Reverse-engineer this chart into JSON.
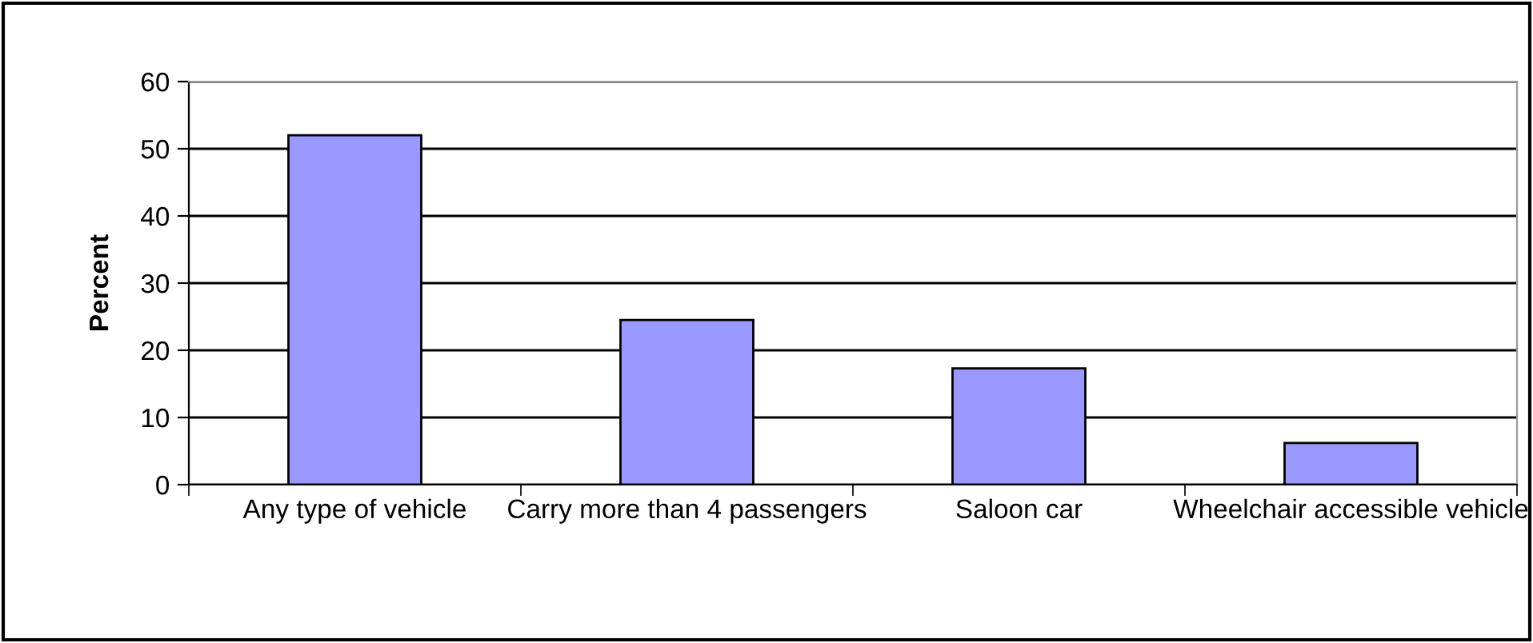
{
  "chart_data": {
    "type": "bar",
    "ylabel": "Percent",
    "categories": [
      "Any type of vehicle",
      "Carry more than 4 passengers",
      "Saloon car",
      "Wheelchair accessible vehicle"
    ],
    "values": [
      52,
      24.5,
      17.3,
      6.2
    ],
    "color": "#9999ff",
    "ylim": [
      0,
      60
    ],
    "yticks": [
      0,
      10,
      20,
      30,
      40,
      50,
      60
    ],
    "grid": "y",
    "legend": false
  }
}
